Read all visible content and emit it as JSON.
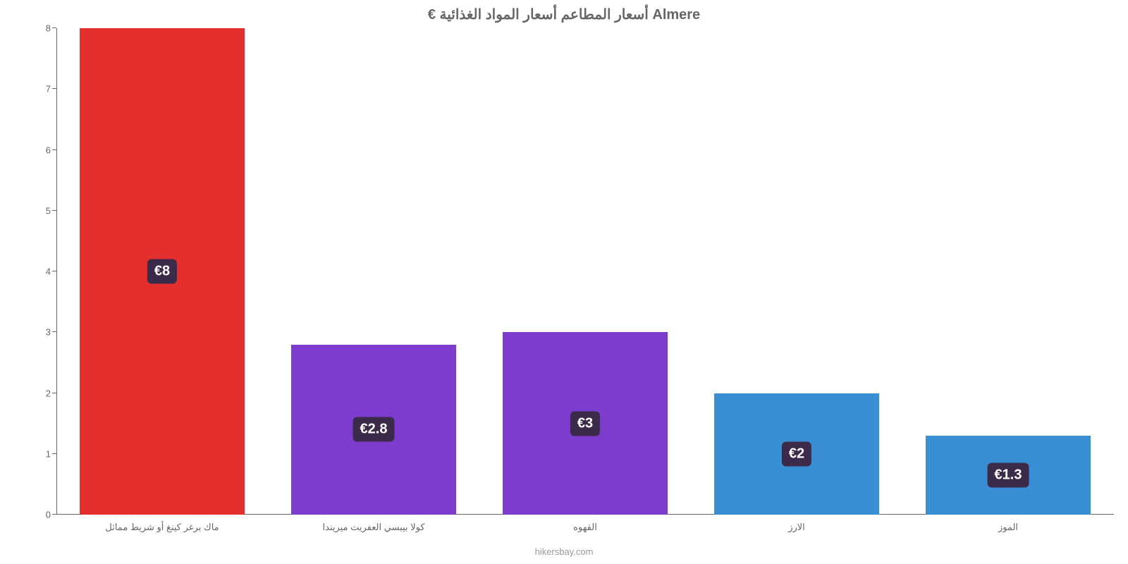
{
  "chart": {
    "type": "bar",
    "title": "€ أسعار المطاعم أسعار المواد الغذائية Almere",
    "title_fontsize": 20,
    "title_color": "#666666",
    "background_color": "#ffffff",
    "axis_color": "#666666",
    "label_color": "#666666",
    "label_fontsize": 13,
    "attribution": "hikersbay.com",
    "attribution_color": "#999999",
    "ylim": [
      0,
      8
    ],
    "ytick_step": 1,
    "yticks": [
      0,
      1,
      2,
      3,
      4,
      5,
      6,
      7,
      8
    ],
    "bar_width_ratio": 0.78,
    "value_badge_bg": "#3b2a4a",
    "value_badge_fontsize": 20,
    "categories": [
      "ماك برغر كينغ أو شريط مماثل",
      "كولا بيبسي العفريت ميريندا",
      "القهوه",
      "الارز",
      "الموز"
    ],
    "values": [
      8,
      2.8,
      3,
      2,
      1.3
    ],
    "value_labels": [
      "€8",
      "€2.8",
      "€3",
      "€2",
      "€1.3"
    ],
    "bar_colors": [
      "#e52f2f",
      "#7d3cce",
      "#7d3cce",
      "#3a8fd4",
      "#3a8fd4"
    ]
  }
}
